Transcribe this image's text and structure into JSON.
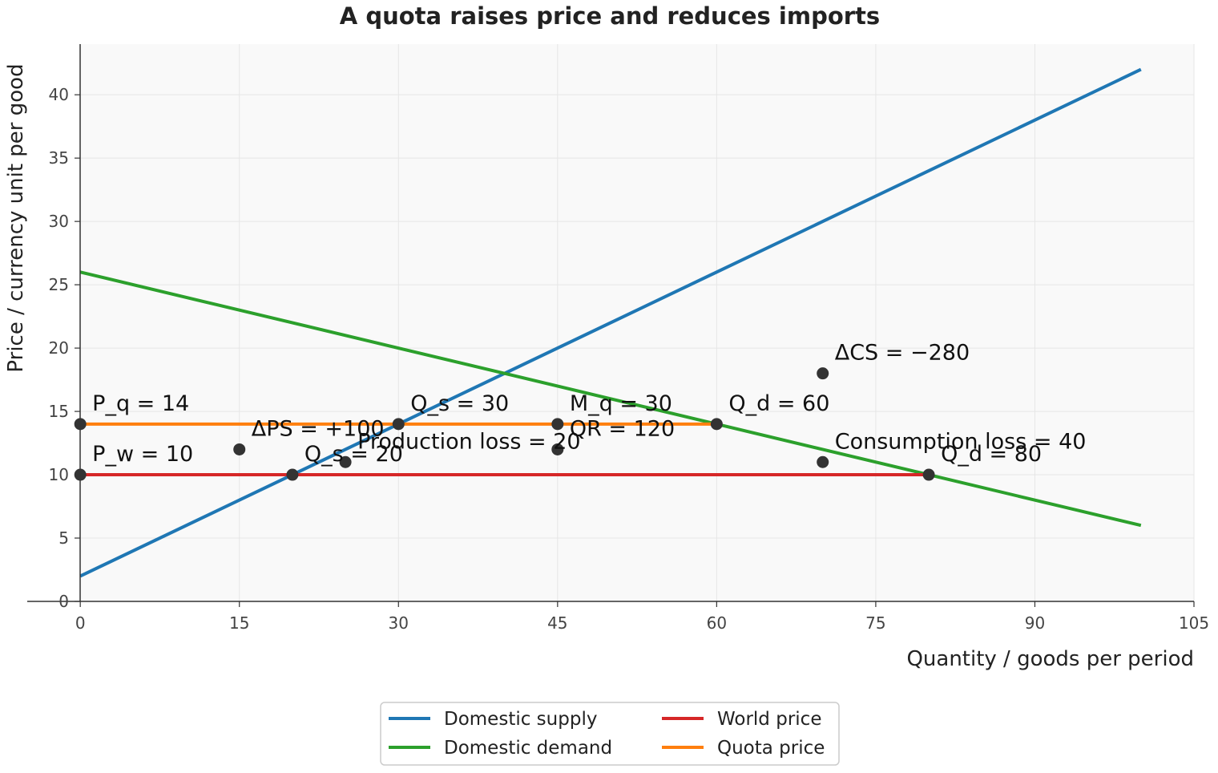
{
  "chart_data": {
    "type": "line",
    "title": "A quota raises price and reduces imports",
    "xlabel": "Quantity / goods per period",
    "ylabel": "Price / currency unit per good",
    "xlim": [
      -5,
      105
    ],
    "ylim": [
      0,
      44
    ],
    "xticks": [
      0,
      15,
      30,
      45,
      60,
      75,
      90,
      105
    ],
    "yticks": [
      0,
      5,
      10,
      15,
      20,
      25,
      30,
      35,
      40
    ],
    "grid": true,
    "legend_position": "bottom-center",
    "series": [
      {
        "name": "Domestic supply",
        "color": "#1f77b4",
        "x": [
          0,
          100
        ],
        "y": [
          2,
          42
        ]
      },
      {
        "name": "Domestic demand",
        "color": "#2ca02c",
        "x": [
          0,
          100
        ],
        "y": [
          26,
          6
        ]
      },
      {
        "name": "World price",
        "color": "#d62728",
        "x": [
          0,
          80
        ],
        "y": [
          10,
          10
        ]
      },
      {
        "name": "Quota price",
        "color": "#ff7f0e",
        "x": [
          0,
          60
        ],
        "y": [
          14,
          14
        ]
      }
    ],
    "points": [
      {
        "x": 0,
        "y": 14,
        "label": "P_q = 14"
      },
      {
        "x": 0,
        "y": 10,
        "label": "P_w = 10"
      },
      {
        "x": 30,
        "y": 14,
        "label": "Q_s = 30"
      },
      {
        "x": 60,
        "y": 14,
        "label": "Q_d = 60"
      },
      {
        "x": 20,
        "y": 10,
        "label": "Q_s = 20"
      },
      {
        "x": 80,
        "y": 10,
        "label": "Q_d = 80"
      },
      {
        "x": 45,
        "y": 14,
        "label": "M_q = 30"
      },
      {
        "x": 45,
        "y": 12,
        "label": "QR = 120"
      },
      {
        "x": 15,
        "y": 12,
        "label": "ΔPS = +100"
      },
      {
        "x": 70,
        "y": 18,
        "label": "ΔCS = −280"
      },
      {
        "x": 25,
        "y": 11,
        "label": "Production loss = 20"
      },
      {
        "x": 70,
        "y": 11,
        "label": "Consumption loss = 40"
      }
    ]
  }
}
